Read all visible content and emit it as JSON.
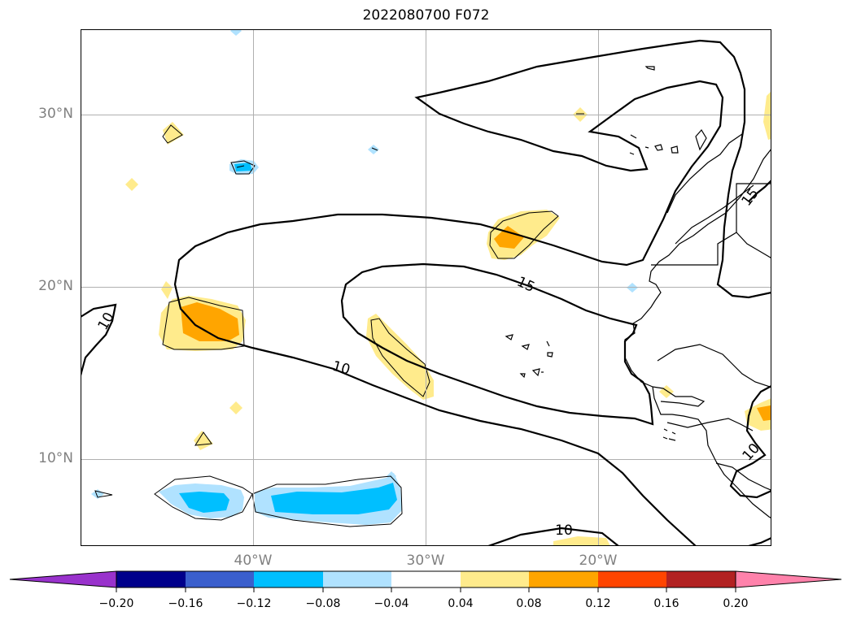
{
  "title": "2022080700 F072",
  "map": {
    "lat_ticks": [
      "30°N",
      "20°N",
      "10°N"
    ],
    "lon_ticks": [
      "40°W",
      "30°W",
      "20°W"
    ],
    "grid": true,
    "contour_labels": [
      "10",
      "15",
      "10",
      "15",
      "10",
      "10"
    ]
  },
  "colorbar": {
    "orientation": "horizontal",
    "extend": "both",
    "tick_labels": [
      "−0.20",
      "−0.16",
      "−0.12",
      "−0.08",
      "−0.04",
      "0.04",
      "0.08",
      "0.12",
      "0.16",
      "0.20"
    ],
    "colors": [
      "#9932cc",
      "#00008b",
      "#3a5fcd",
      "#00bfff",
      "#b0e2ff",
      "#ffffff",
      "#ffeb8c",
      "#ffa500",
      "#ff4500",
      "#b22222",
      "#ff82ab"
    ]
  },
  "colors": {
    "grid": "#b0b0b0",
    "contour": "#000000",
    "label_gray": "#808080",
    "shade_pos_light": "#ffeb8c",
    "shade_pos_mid": "#ffa500",
    "shade_neg_light": "#b0e2ff",
    "shade_neg_mid": "#00bfff"
  }
}
